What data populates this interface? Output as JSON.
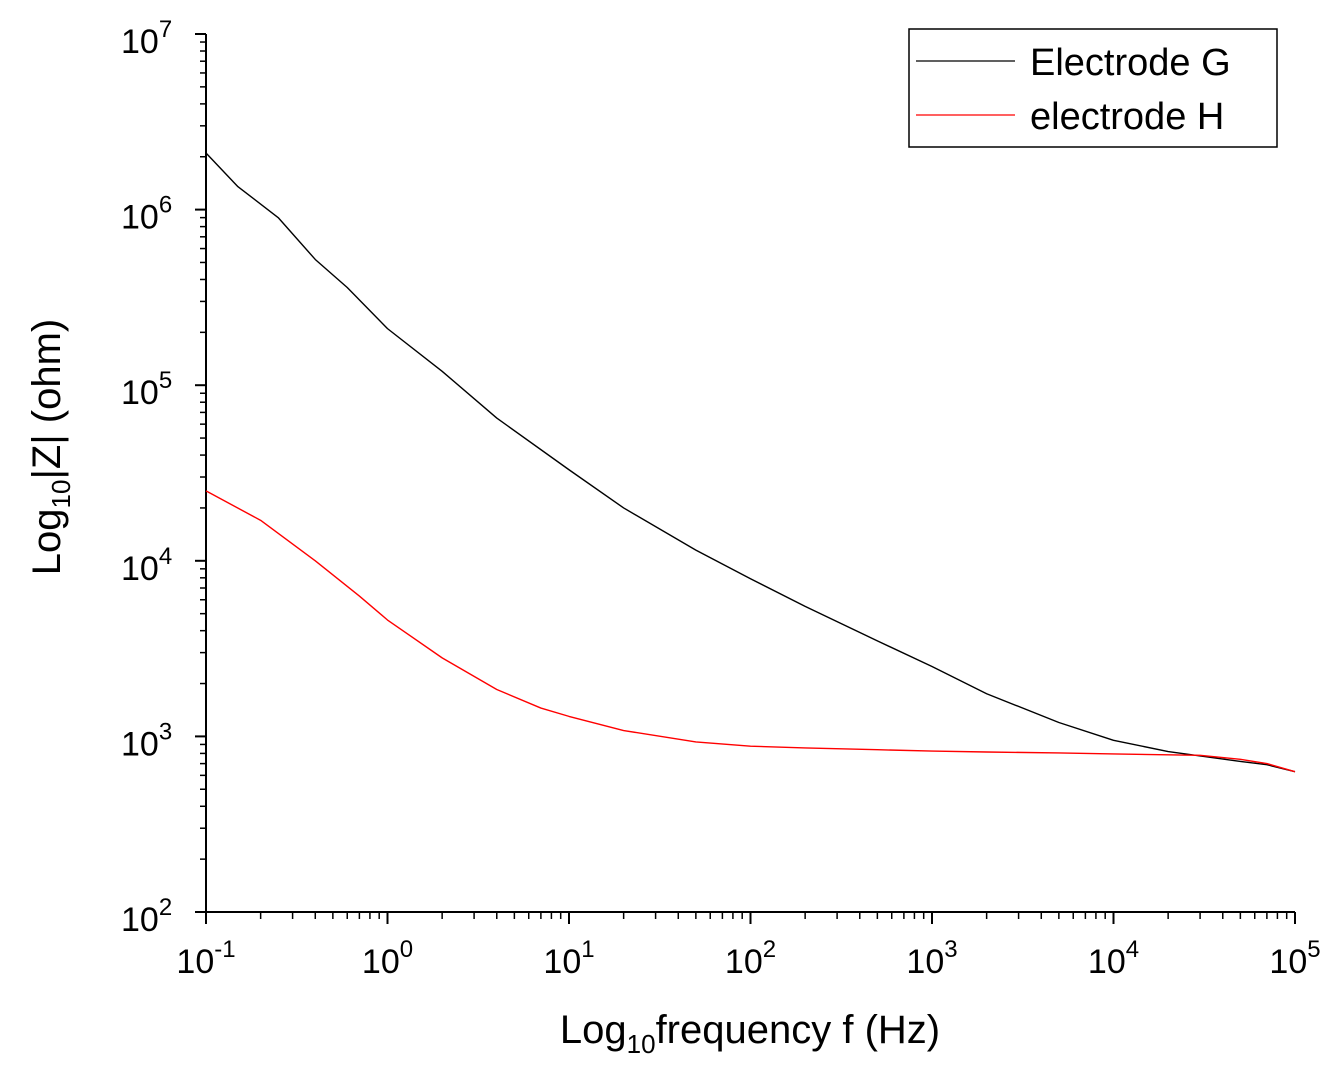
{
  "chart_data": {
    "type": "line",
    "title": "",
    "xlabel": {
      "base": "Log",
      "sub": "10",
      "rest": "frequency f (Hz)"
    },
    "ylabel": {
      "base": "Log",
      "sub": "10",
      "rest": "|Z| (ohm)"
    },
    "x_scale": "log",
    "y_scale": "log",
    "xlim": [
      0.1,
      100000
    ],
    "ylim": [
      100,
      10000000
    ],
    "x_ticks": [
      {
        "base": "10",
        "exp": "-1",
        "value": 0.1
      },
      {
        "base": "10",
        "exp": "0",
        "value": 1
      },
      {
        "base": "10",
        "exp": "1",
        "value": 10
      },
      {
        "base": "10",
        "exp": "2",
        "value": 100
      },
      {
        "base": "10",
        "exp": "3",
        "value": 1000
      },
      {
        "base": "10",
        "exp": "4",
        "value": 10000
      },
      {
        "base": "10",
        "exp": "5",
        "value": 100000
      }
    ],
    "y_ticks": [
      {
        "base": "10",
        "exp": "2",
        "value": 100
      },
      {
        "base": "10",
        "exp": "3",
        "value": 1000
      },
      {
        "base": "10",
        "exp": "4",
        "value": 10000
      },
      {
        "base": "10",
        "exp": "5",
        "value": 100000
      },
      {
        "base": "10",
        "exp": "6",
        "value": 1000000
      },
      {
        "base": "10",
        "exp": "7",
        "value": 10000000
      }
    ],
    "grid": false,
    "legend_position": "top-right",
    "series": [
      {
        "name": "Electrode G",
        "color": "#000000",
        "x": [
          0.1,
          0.15,
          0.25,
          0.4,
          0.6,
          1,
          2,
          4,
          10,
          20,
          50,
          100,
          200,
          500,
          1000,
          2000,
          5000,
          10000,
          20000,
          50000,
          70000,
          100000
        ],
        "y": [
          2100000,
          1350000,
          900000,
          520000,
          360000,
          210000,
          120000,
          65000,
          33000,
          20000,
          11500,
          7900,
          5500,
          3500,
          2500,
          1750,
          1200,
          950,
          820,
          720,
          690,
          630
        ]
      },
      {
        "name": "electrode H",
        "color": "#ff0000",
        "x": [
          0.1,
          0.2,
          0.4,
          0.7,
          1,
          2,
          4,
          7,
          10,
          20,
          50,
          100,
          200,
          500,
          1000,
          2000,
          5000,
          10000,
          30000,
          50000,
          70000,
          100000
        ],
        "y": [
          25000,
          17000,
          10000,
          6300,
          4600,
          2800,
          1850,
          1450,
          1300,
          1080,
          930,
          880,
          860,
          840,
          825,
          815,
          805,
          795,
          780,
          740,
          700,
          630
        ]
      }
    ]
  }
}
